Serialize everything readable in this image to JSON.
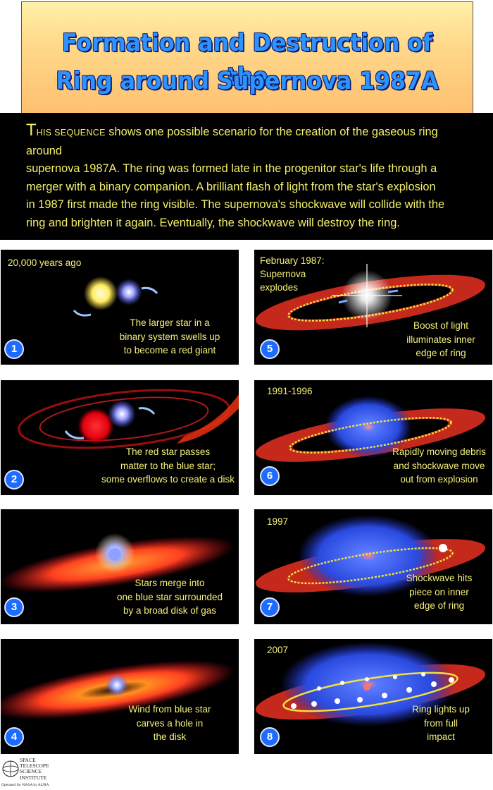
{
  "title": {
    "line1": "Formation and Destruction of the",
    "line2": "Ring around Supernova 1987A"
  },
  "intro": {
    "cap": "T",
    "smallcaps": "HIS SEQUENCE",
    "line1_rest": " shows one possible scenario for the creation of the gaseous ring around",
    "line2": "supernova 1987A. The ring was formed late in the progenitor star's life through a",
    "line3": "merger with a binary companion. A brilliant flash of light from the star's explosion",
    "line4": "in 1987 first made the ring visible. The supernova's shockwave will collide with the",
    "line5": "ring and brighten it again.  Eventually, the shockwave will destroy the ring."
  },
  "panels": [
    {
      "number": "1",
      "label": "20,000 years ago",
      "caption": [
        "The larger star in a",
        "binary system swells up",
        "to become a red giant"
      ]
    },
    {
      "number": "2",
      "label": "",
      "caption": [
        "The red star passes",
        "matter to the blue star;",
        "some overflows to create a disk"
      ]
    },
    {
      "number": "3",
      "label": "",
      "caption": [
        "Stars merge into",
        "one blue star surrounded",
        "by a broad disk of gas"
      ]
    },
    {
      "number": "4",
      "label": "",
      "caption": [
        "Wind from blue star",
        "carves a hole in",
        "the disk"
      ]
    },
    {
      "number": "5",
      "label": [
        "February 1987:",
        "Supernova",
        "explodes"
      ],
      "caption": [
        "Boost of light",
        "illuminates inner",
        "edge of ring"
      ]
    },
    {
      "number": "6",
      "label": "1991-1996",
      "caption": [
        "Rapidly moving debris",
        "and shockwave move",
        "out from explosion"
      ]
    },
    {
      "number": "7",
      "label": "1997",
      "caption": [
        "Shockwave hits",
        "piece on inner",
        "edge of ring"
      ]
    },
    {
      "number": "8",
      "label": "2007",
      "caption": [
        "Ring lights up",
        "from full",
        "impact"
      ]
    }
  ],
  "logo": {
    "lines": [
      "SPACE",
      "TELESCOPE",
      "SCIENCE",
      "INSTITUTE"
    ],
    "sub": "Operated for NASA by AURA"
  },
  "colors": {
    "caption_text": "#f4f07a",
    "title_fill": "#2f93ff",
    "number_badge": "#1d6cff"
  }
}
